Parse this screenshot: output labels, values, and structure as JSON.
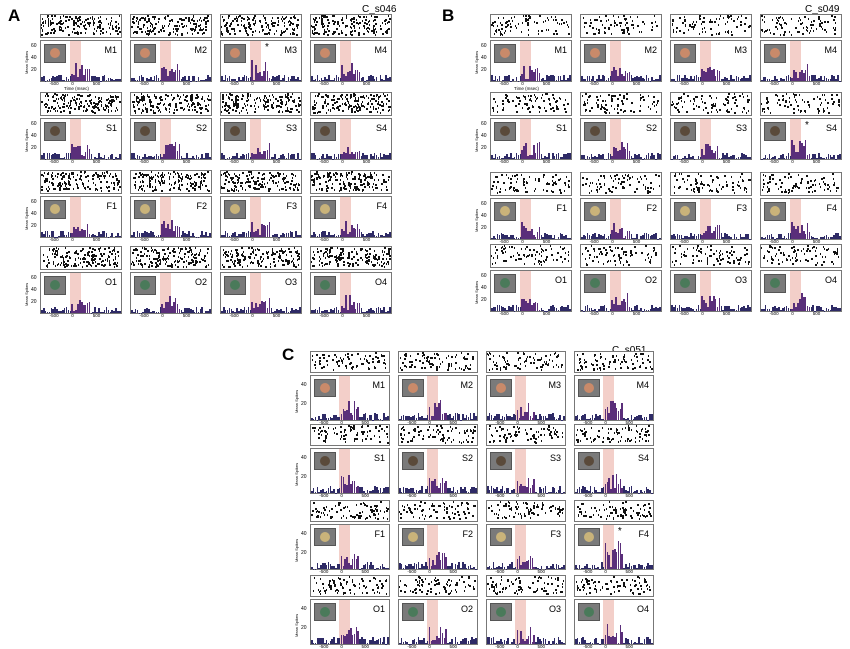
{
  "figure": {
    "panels": [
      {
        "id": "A",
        "label": "A",
        "title": "C_s046",
        "conditions": [
          [
            "M1",
            "M2",
            "M3",
            "M4"
          ],
          [
            "S1",
            "S2",
            "S3",
            "S4"
          ],
          [
            "F1",
            "F2",
            "F3",
            "F4"
          ],
          [
            "O1",
            "O2",
            "O3",
            "O4"
          ]
        ],
        "stars": [
          "M3"
        ]
      },
      {
        "id": "B",
        "label": "B",
        "title": "C_s049",
        "conditions": [
          [
            "M1",
            "M2",
            "M3",
            "M4"
          ],
          [
            "S1",
            "S2",
            "S3",
            "S4"
          ],
          [
            "F1",
            "F2",
            "F3",
            "F4"
          ],
          [
            "O1",
            "O2",
            "O3",
            "O4"
          ]
        ],
        "stars": [
          "S4"
        ]
      },
      {
        "id": "C",
        "label": "C",
        "title": "C_s051",
        "conditions": [
          [
            "M1",
            "M2",
            "M3",
            "M4"
          ],
          [
            "S1",
            "S2",
            "S3",
            "S4"
          ],
          [
            "F1",
            "F2",
            "F3",
            "F4"
          ],
          [
            "O1",
            "O2",
            "O3",
            "O4"
          ]
        ],
        "stars": [
          "F4"
        ]
      }
    ],
    "axis": {
      "ylabel": "Mean Spikes",
      "xlabel": "Time (msec)",
      "yticks_AB": [
        "60",
        "40",
        "20"
      ],
      "yticks_C": [
        "40",
        "20"
      ],
      "xticks": [
        "-500",
        "0",
        "500"
      ]
    },
    "colors": {
      "bars": "#2e2a66",
      "highlight": "#5a2e7a",
      "stim_window": "#f3cfc9",
      "thumb_bg": "#7a7a7a"
    },
    "category_icons": {
      "M": "monkey-face-icon",
      "S": "snake-icon",
      "F": "food-icon",
      "O": "object-icon"
    }
  }
}
